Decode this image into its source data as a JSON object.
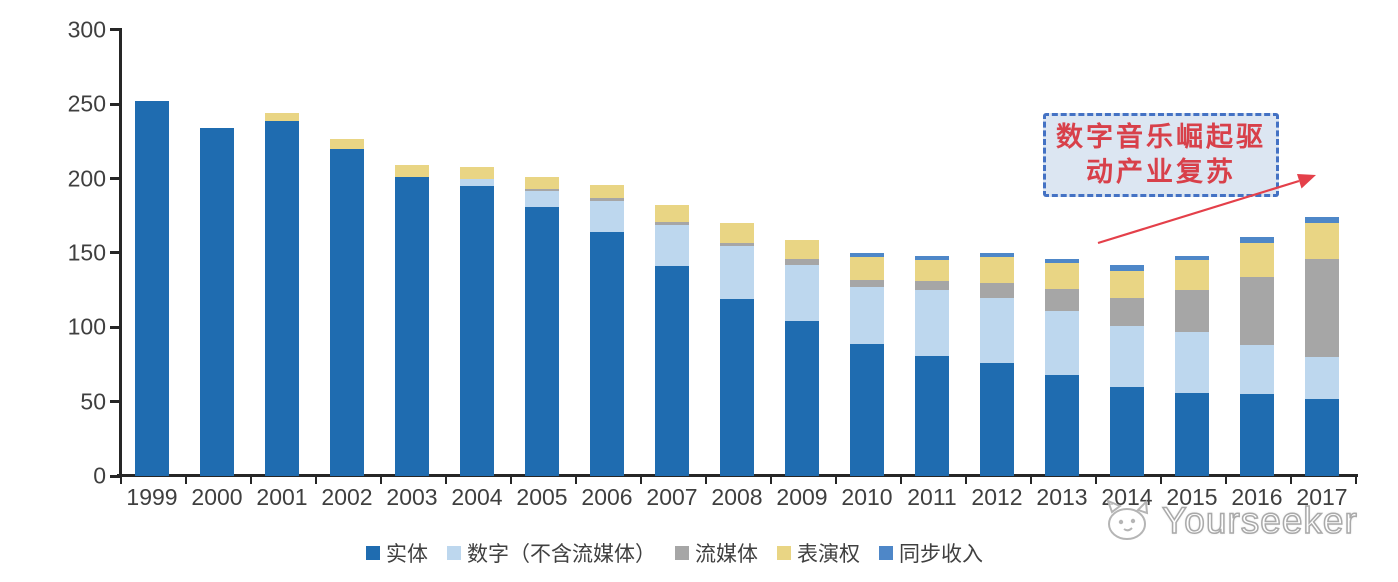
{
  "chart_data": {
    "type": "bar",
    "stacked": true,
    "title": "",
    "xlabel": "",
    "ylabel": "",
    "categories": [
      "1999",
      "2000",
      "2001",
      "2002",
      "2003",
      "2004",
      "2005",
      "2006",
      "2007",
      "2008",
      "2009",
      "2010",
      "2011",
      "2012",
      "2013",
      "2014",
      "2015",
      "2016",
      "2017"
    ],
    "series": [
      {
        "name": "实体",
        "color": "#1F6CB0",
        "values": [
          252,
          234,
          239,
          220,
          201,
          195,
          181,
          164,
          141,
          119,
          104,
          89,
          81,
          76,
          68,
          60,
          56,
          55,
          52
        ]
      },
      {
        "name": "数字（不含流媒体）",
        "color": "#BDD7EE",
        "values": [
          0,
          0,
          0,
          0,
          0,
          5,
          11,
          21,
          28,
          36,
          38,
          38,
          44,
          44,
          43,
          41,
          41,
          33,
          28
        ]
      },
      {
        "name": "流媒体",
        "color": "#A6A6A6",
        "values": [
          0,
          0,
          0,
          0,
          0,
          0,
          1,
          2,
          2,
          2,
          4,
          5,
          6,
          10,
          15,
          19,
          28,
          46,
          66
        ]
      },
      {
        "name": "表演权",
        "color": "#E9D584",
        "values": [
          0,
          0,
          5,
          7,
          8,
          8,
          8,
          9,
          11,
          13,
          13,
          15,
          14,
          17,
          17,
          18,
          20,
          23,
          24
        ]
      },
      {
        "name": "同步收入",
        "color": "#4E87C8",
        "values": [
          0,
          0,
          0,
          0,
          0,
          0,
          0,
          0,
          0,
          0,
          0,
          3,
          3,
          3,
          3,
          4,
          3,
          4,
          4
        ]
      }
    ],
    "ylim": [
      0,
      300
    ],
    "yticks": [
      0,
      50,
      100,
      150,
      200,
      250,
      300
    ],
    "grid": false,
    "legend_position": "bottom"
  },
  "annotation": {
    "line1": "数字音乐崛起驱",
    "line2": "动产业复苏",
    "text_color": "#D8404A",
    "border_color": "#4472C4",
    "fill_color": "#DCE6F2",
    "arrow_color": "#E4404A"
  },
  "watermark": {
    "text": "Yourseeker"
  },
  "colors": {
    "axis_line": "#262626",
    "axis_text": "#3F3F3F"
  }
}
